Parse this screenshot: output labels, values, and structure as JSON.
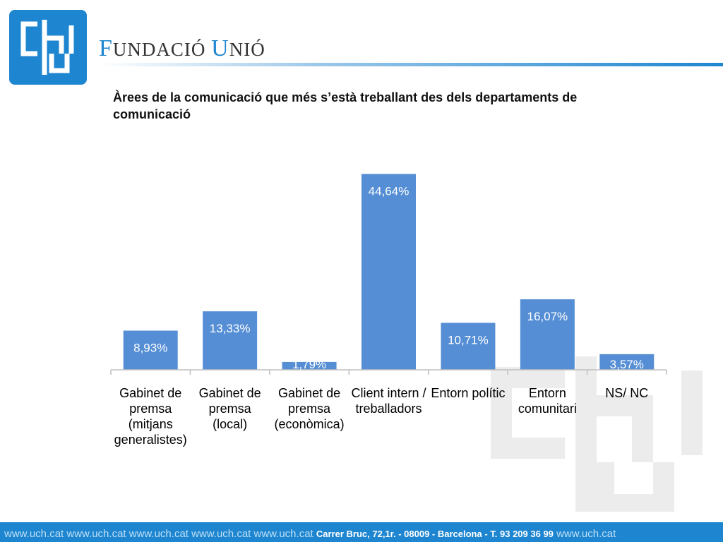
{
  "brand": {
    "name_part1_initial": "F",
    "name_part1_rest": "UNDACIÓ",
    "name_part2_initial": "U",
    "name_part2_rest": "NIÓ"
  },
  "title": "Àrees de la comunicació que més s’està treballant des dels departaments de comunicació",
  "chart_data": {
    "type": "bar",
    "categories": [
      [
        "Gabinet de",
        "premsa",
        "(mitjans",
        "generalistes)"
      ],
      [
        "Gabinet de",
        "premsa",
        "(local)"
      ],
      [
        "Gabinet de",
        "premsa",
        "(econòmica)"
      ],
      [
        "Client intern /",
        "treballadors"
      ],
      [
        "Entorn polític"
      ],
      [
        "Entorn",
        "comunitari"
      ],
      [
        "NS/ NC"
      ]
    ],
    "values": [
      8.93,
      13.33,
      1.79,
      44.64,
      10.71,
      16.07,
      3.57
    ],
    "data_labels": [
      "8,93%",
      "13,33%",
      "1,79%",
      "44,64%",
      "10,71%",
      "16,07%",
      "3,57%"
    ],
    "ylim": [
      0,
      50
    ],
    "bar_color": "#558ed5",
    "grid": false,
    "legend": "none"
  },
  "footer": {
    "links": [
      "www.uch.cat",
      "www.uch.cat",
      "www.uch.cat",
      "www.uch.cat",
      "www.uch.cat"
    ],
    "address": "Carrer Bruc, 72,1r.  - 08009 -  Barcelona  - T. 93 209 36 99",
    "link_end": "www.uch.cat"
  },
  "colors": {
    "accent": "#1e86d0",
    "bar": "#558ed5",
    "footer_text": "#bfdff5"
  }
}
